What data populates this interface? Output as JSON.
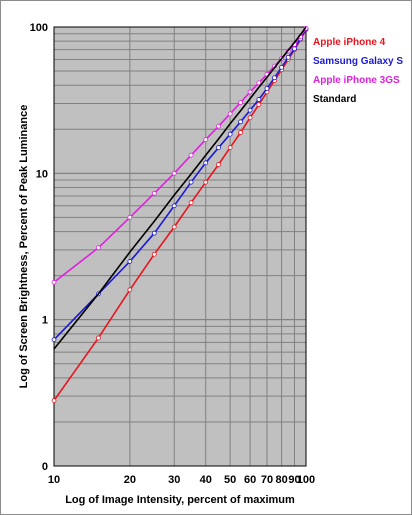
{
  "chart_data": {
    "type": "line",
    "xlabel": "Log of Image Intensity, percent of maximum",
    "ylabel": "Log of Screen Brightness, Percent of Peak Luminance",
    "x_scale": "log",
    "y_scale": "log",
    "xlim": [
      10,
      100
    ],
    "ylim": [
      0.1,
      100
    ],
    "x_ticks": [
      10,
      20,
      30,
      40,
      50,
      60,
      70,
      80,
      90,
      100
    ],
    "x_tick_labels": [
      "10",
      "20",
      "30",
      "40",
      "50",
      "60",
      "70",
      "80",
      "90",
      "100"
    ],
    "y_ticks": [
      0.1,
      1,
      10,
      100
    ],
    "y_tick_labels": [
      "0",
      "1",
      "10",
      "100"
    ],
    "grid": true,
    "plot_background": "#c0c0c0",
    "legend_position": "right",
    "series": [
      {
        "name": "Apple iPhone 4",
        "color": "#e8141e",
        "x": [
          10,
          15,
          20,
          25,
          30,
          35,
          40,
          45,
          50,
          55,
          60,
          65,
          70,
          75,
          80,
          85,
          90,
          95,
          100
        ],
        "y": [
          0.28,
          0.75,
          1.6,
          2.8,
          4.3,
          6.3,
          8.7,
          11.5,
          15,
          19,
          24,
          29.5,
          36,
          43,
          51,
          60,
          70,
          82,
          96
        ]
      },
      {
        "name": "Samsung Galaxy S",
        "color": "#1a1ad0",
        "x": [
          10,
          15,
          20,
          25,
          30,
          35,
          40,
          45,
          50,
          55,
          60,
          65,
          70,
          75,
          80,
          85,
          90,
          95,
          100
        ],
        "y": [
          0.73,
          1.5,
          2.5,
          3.9,
          6.0,
          8.7,
          11.8,
          15,
          18.5,
          22.5,
          27,
          32,
          38,
          45,
          53,
          62,
          71,
          83,
          97
        ]
      },
      {
        "name": "Apple iPhone 3GS",
        "color": "#e020e0",
        "x": [
          10,
          15,
          20,
          25,
          30,
          35,
          40,
          45,
          50,
          55,
          60,
          65,
          70,
          75,
          80,
          85,
          90,
          95,
          100
        ],
        "y": [
          1.8,
          3.1,
          5.0,
          7.3,
          10,
          13.3,
          17,
          21,
          25.5,
          30.5,
          36,
          41.5,
          47.5,
          54,
          61,
          68.5,
          76,
          86,
          98
        ]
      },
      {
        "name": "Standard",
        "color": "#000000",
        "x": [
          10,
          15,
          20,
          25,
          30,
          35,
          40,
          45,
          50,
          55,
          60,
          65,
          70,
          75,
          80,
          85,
          90,
          95,
          100
        ],
        "y": [
          0.63,
          1.5,
          2.9,
          4.7,
          7.1,
          9.9,
          13.3,
          17.2,
          21.8,
          26.8,
          32.4,
          38.7,
          45.4,
          52.8,
          60.8,
          69.4,
          78.5,
          88.4,
          100
        ]
      }
    ]
  }
}
